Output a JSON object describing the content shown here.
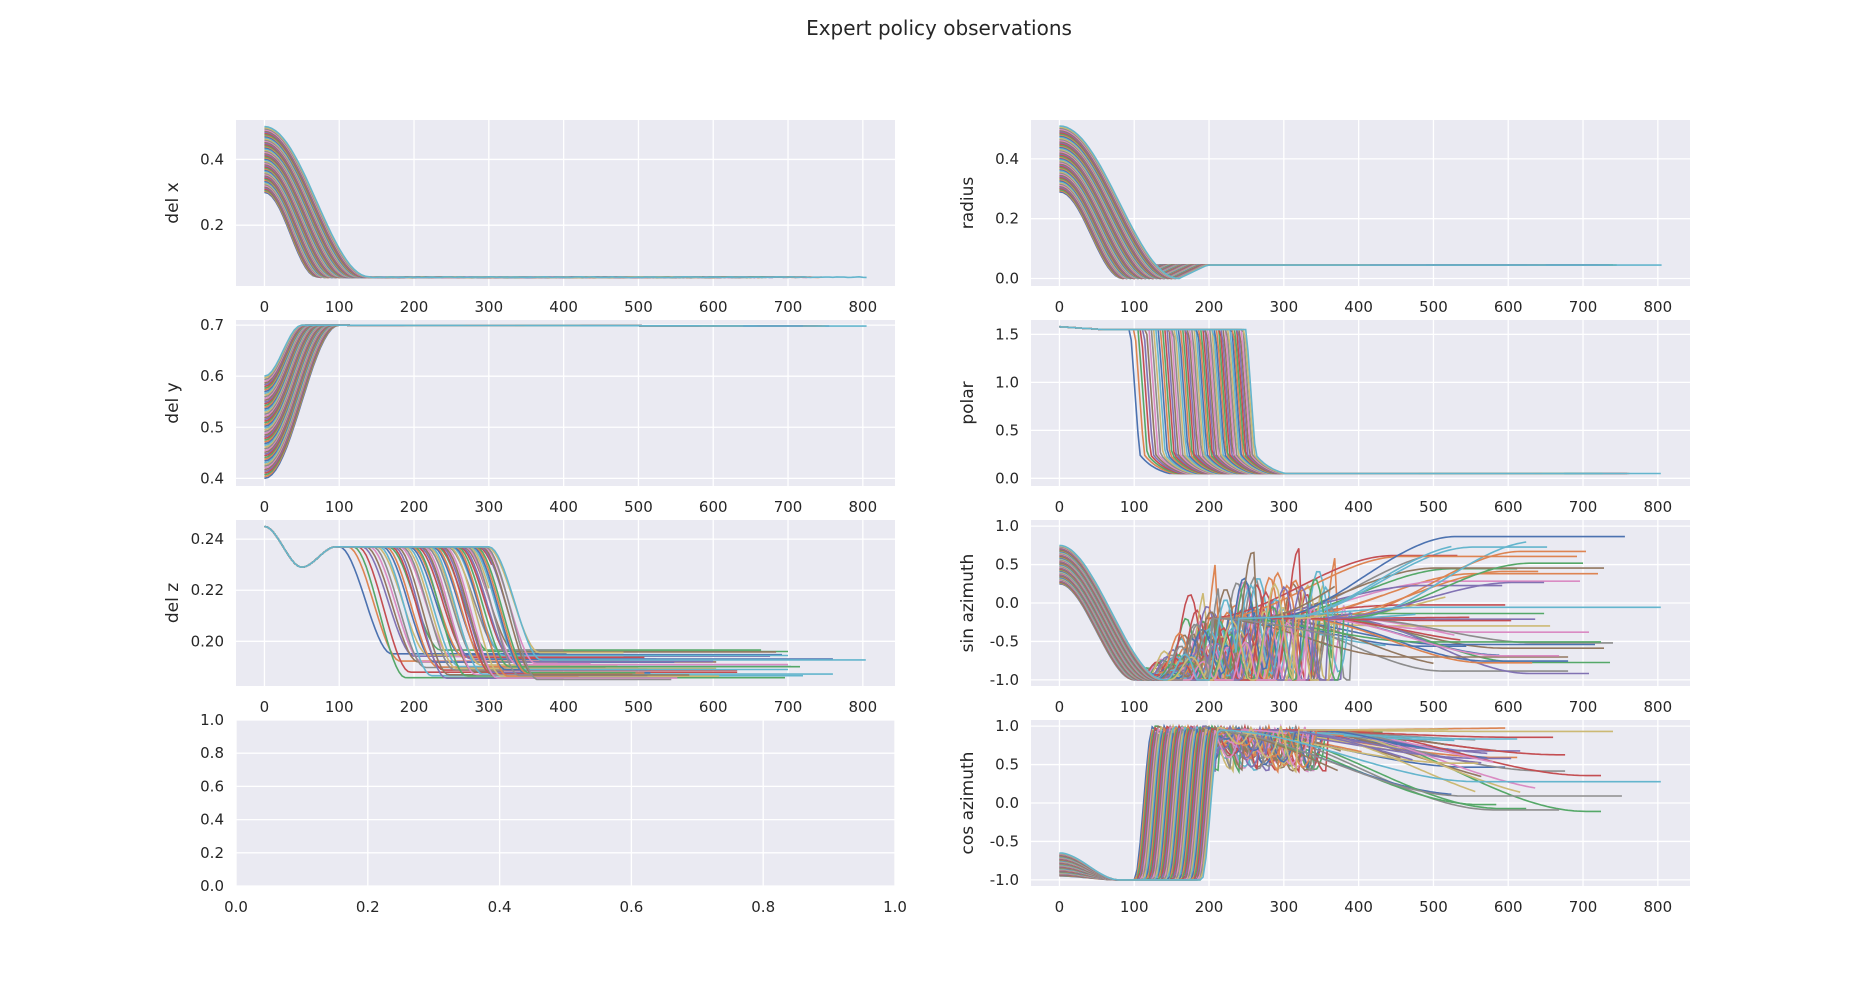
{
  "title": "Expert policy observations",
  "colors": {
    "background": "#eaeaf2",
    "grid": "#ffffff",
    "palette": [
      "#4c72b0",
      "#dd8452",
      "#55a868",
      "#c44e52",
      "#8172b3",
      "#937860",
      "#da8bc3",
      "#8c8c8c",
      "#ccb974",
      "#64b5cd"
    ]
  },
  "chart_data": [
    {
      "id": "del-x",
      "type": "line",
      "ylabel": "del x",
      "xticks": [
        "0",
        "100",
        "200",
        "300",
        "400",
        "500",
        "600",
        "700",
        "800"
      ],
      "yticks": [
        "0.2",
        "0.4"
      ],
      "xlim": [
        -38,
        843
      ],
      "ylim": [
        0.015,
        0.52
      ],
      "grid": true,
      "series_count": 60,
      "envelope": {
        "start_range": [
          0.3,
          0.5
        ],
        "transition_steps": [
          70,
          140
        ],
        "settle_value": 0.043,
        "episode_length_range": [
          300,
          805
        ]
      }
    },
    {
      "id": "radius",
      "type": "line",
      "ylabel": "radius",
      "xticks": [
        "0",
        "100",
        "200",
        "300",
        "400",
        "500",
        "600",
        "700",
        "800"
      ],
      "yticks": [
        "0.0",
        "0.2",
        "0.4"
      ],
      "xlim": [
        -38,
        843
      ],
      "ylim": [
        -0.025,
        0.53
      ],
      "grid": true,
      "series_count": 60,
      "envelope": {
        "start_range": [
          0.29,
          0.51
        ],
        "transition_steps": [
          80,
          250
        ],
        "settle_value": 0.045,
        "episode_length_range": [
          300,
          805
        ]
      }
    },
    {
      "id": "del-y",
      "type": "line",
      "ylabel": "del y",
      "xticks": [
        "0",
        "100",
        "200",
        "300",
        "400",
        "500",
        "600",
        "700",
        "800"
      ],
      "yticks": [
        "0.4",
        "0.5",
        "0.6",
        "0.7"
      ],
      "xlim": [
        -38,
        843
      ],
      "ylim": [
        0.385,
        0.71
      ],
      "grid": true,
      "series_count": 60,
      "envelope": {
        "start_range": [
          0.4,
          0.6
        ],
        "transition_steps": [
          50,
          100
        ],
        "settle_value": 0.7,
        "episode_length_range": [
          300,
          805
        ]
      }
    },
    {
      "id": "polar",
      "type": "line",
      "ylabel": "polar",
      "xticks": [
        "0",
        "100",
        "200",
        "300",
        "400",
        "500",
        "600",
        "700",
        "800"
      ],
      "yticks": [
        "0.0",
        "0.5",
        "1.0",
        "1.5"
      ],
      "xlim": [
        -38,
        843
      ],
      "ylim": [
        -0.08,
        1.65
      ],
      "grid": true,
      "series_count": 60,
      "envelope": {
        "start_value": 1.57,
        "drop_step_range": [
          95,
          250
        ],
        "settle_value": 0.05,
        "episode_length_range": [
          300,
          805
        ]
      }
    },
    {
      "id": "del-z",
      "type": "line",
      "ylabel": "del z",
      "xticks": [
        "0",
        "100",
        "200",
        "300",
        "400",
        "500",
        "600",
        "700",
        "800"
      ],
      "yticks": [
        "0.20",
        "0.22",
        "0.24"
      ],
      "xlim": [
        -38,
        843
      ],
      "ylim": [
        0.1825,
        0.2475
      ],
      "grid": true,
      "series_count": 60,
      "envelope": {
        "start_value": 0.245,
        "dip_value": 0.229,
        "plateau_value": 0.237,
        "drop_step_range": [
          100,
          300
        ],
        "settle_range": [
          0.185,
          0.197
        ],
        "episode_length_range": [
          300,
          805
        ]
      }
    },
    {
      "id": "sin-azimuth",
      "type": "line",
      "ylabel": "sin azimuth",
      "xticks": [
        "0",
        "100",
        "200",
        "300",
        "400",
        "500",
        "600",
        "700",
        "800"
      ],
      "yticks": [
        "-1.0",
        "-0.5",
        "0.0",
        "0.5",
        "1.0"
      ],
      "xlim": [
        -38,
        843
      ],
      "ylim": [
        -1.08,
        1.08
      ],
      "grid": true,
      "series_count": 60,
      "envelope": {
        "start_range": [
          0.25,
          0.75
        ],
        "min_value": -1.0,
        "min_step_range": [
          100,
          140
        ],
        "end_range": [
          -1.0,
          1.0
        ],
        "episode_length_range": [
          300,
          805
        ]
      }
    },
    {
      "id": "empty",
      "type": "line",
      "ylabel": "",
      "xticks": [
        "0.0",
        "0.2",
        "0.4",
        "0.6",
        "0.8",
        "1.0"
      ],
      "yticks": [
        "0.0",
        "0.2",
        "0.4",
        "0.6",
        "0.8",
        "1.0"
      ],
      "xlim": [
        0,
        1
      ],
      "ylim": [
        0,
        1
      ],
      "grid": true,
      "series_count": 0
    },
    {
      "id": "cos-azimuth",
      "type": "line",
      "ylabel": "cos azimuth",
      "xticks": [
        "0",
        "100",
        "200",
        "300",
        "400",
        "500",
        "600",
        "700",
        "800"
      ],
      "yticks": [
        "-1.0",
        "-0.5",
        "0.0",
        "0.5",
        "1.0"
      ],
      "xlim": [
        -38,
        843
      ],
      "ylim": [
        -1.08,
        1.08
      ],
      "grid": true,
      "series_count": 60,
      "envelope": {
        "start_range": [
          -0.95,
          -0.65
        ],
        "min_value": -1.0,
        "rise_step_range": [
          100,
          190
        ],
        "max_value": 1.0,
        "end_range": [
          -0.15,
          1.0
        ],
        "episode_length_range": [
          300,
          805
        ]
      }
    }
  ]
}
